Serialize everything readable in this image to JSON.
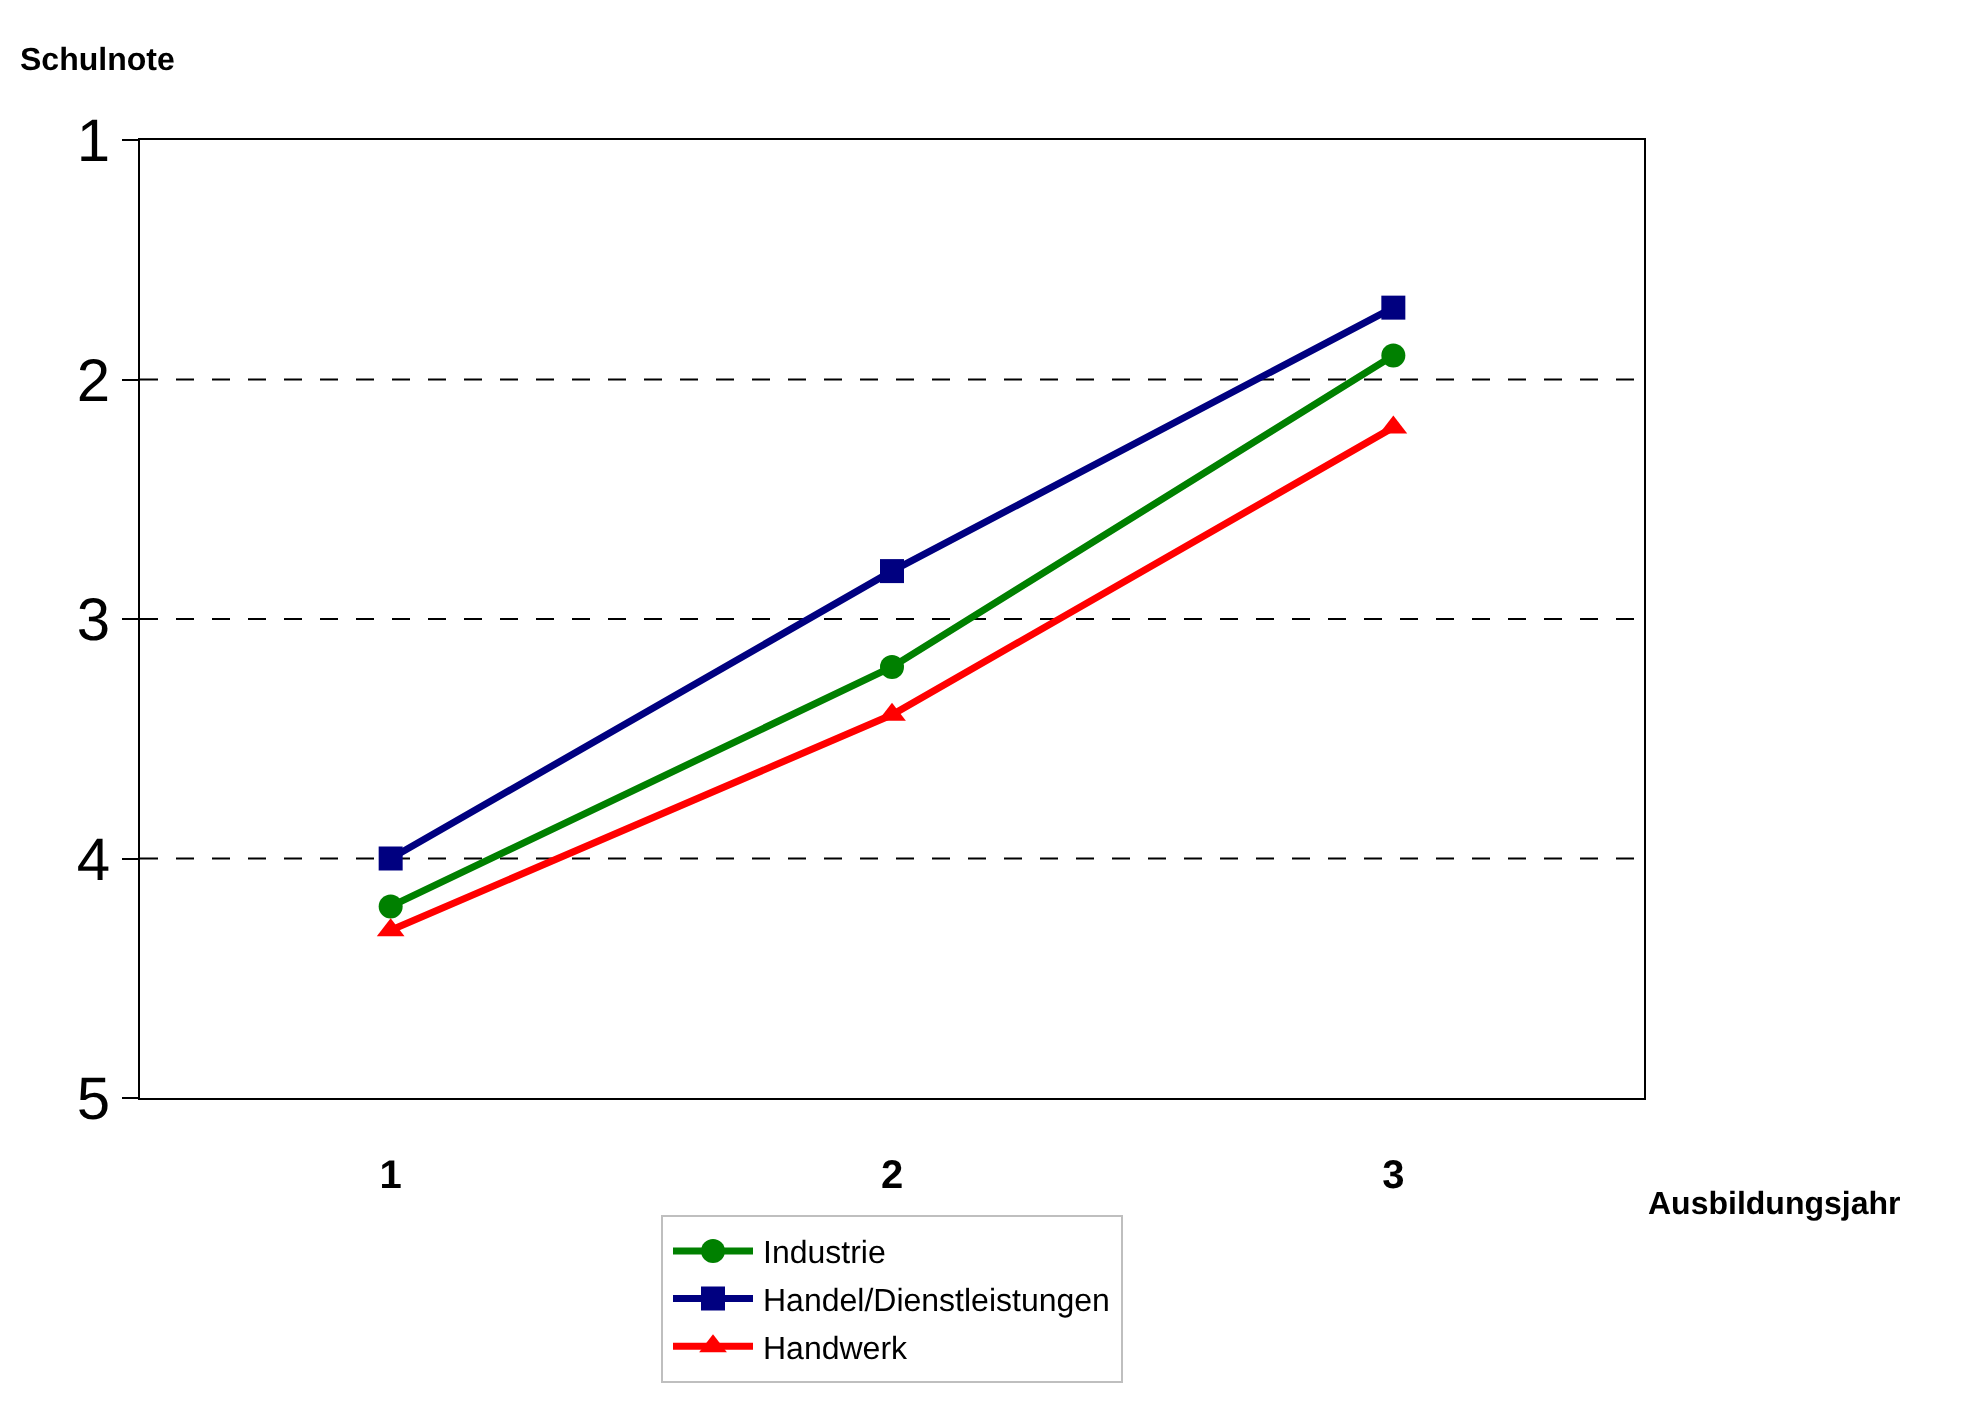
{
  "chart_data": {
    "type": "line",
    "ylabel": "Schulnote",
    "xlabel": "Ausbildungsjahr",
    "categories": [
      "1",
      "2",
      "3"
    ],
    "series": [
      {
        "name": "Industrie",
        "color": "#008000",
        "values": [
          4.2,
          3.2,
          1.9
        ],
        "marker": "circle"
      },
      {
        "name": "Handel/Dienstleistungen",
        "color": "#000080",
        "values": [
          4.0,
          2.8,
          1.7
        ],
        "marker": "square"
      },
      {
        "name": "Handwerk",
        "color": "#ff0000",
        "values": [
          4.3,
          3.4,
          2.2
        ],
        "marker": "triangle"
      }
    ],
    "ylim": [
      5,
      1
    ],
    "yticks": [
      1,
      2,
      3,
      4,
      5
    ],
    "grid": "y",
    "legend": "bottom",
    "line_style": "solid"
  }
}
